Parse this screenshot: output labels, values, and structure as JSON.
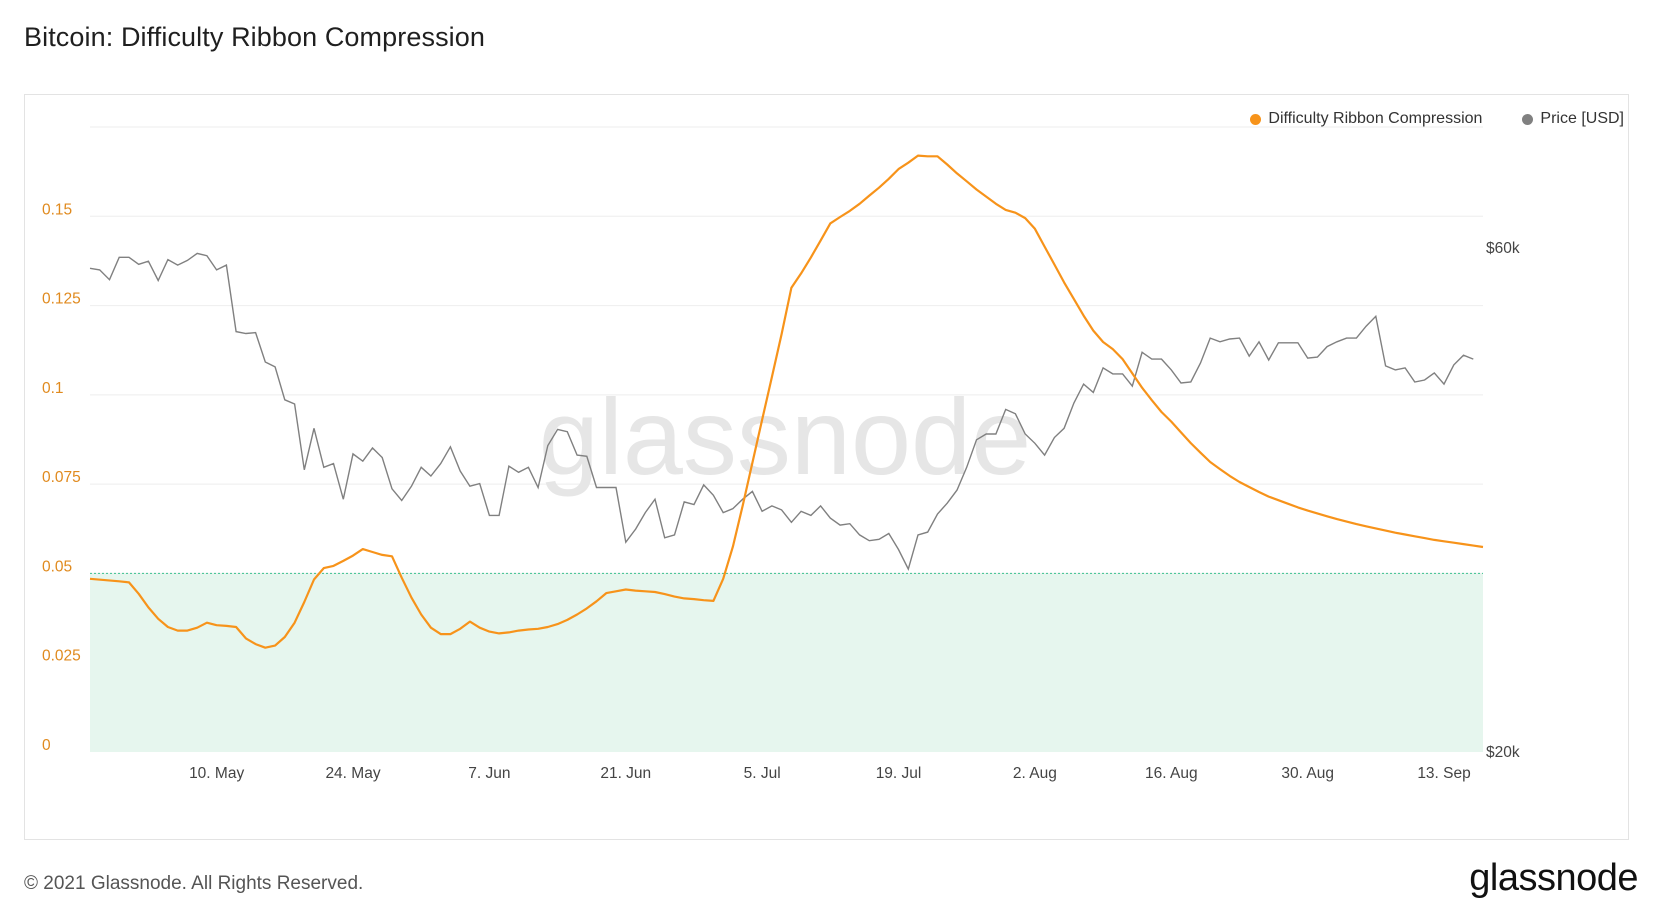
{
  "title": "Bitcoin: Difficulty Ribbon Compression",
  "footer": "© 2021 Glassnode. All Rights Reserved.",
  "logo": "glassnode",
  "watermark": "glassnode",
  "colors": {
    "compression": "#f7931a",
    "price": "#808080",
    "zone_fill": "#e6f6ee",
    "zone_line": "#4fc79a",
    "left_axis_text": "#e08a1e",
    "right_axis_text": "#444444",
    "grid": "#eeeeee"
  },
  "legend": [
    {
      "name": "Difficulty Ribbon Compression",
      "color": "#f7931a"
    },
    {
      "name": "Price [USD]",
      "color": "#808080"
    }
  ],
  "chart_data": {
    "type": "line",
    "title": "Bitcoin: Difficulty Ribbon Compression",
    "x_ticks": [
      "10. May",
      "24. May",
      "7. Jun",
      "21. Jun",
      "5. Jul",
      "19. Jul",
      "2. Aug",
      "16. Aug",
      "30. Aug",
      "13. Sep"
    ],
    "x_tick_days": [
      9,
      23,
      37,
      51,
      65,
      79,
      93,
      107,
      121,
      135
    ],
    "x_range_days": [
      -4,
      139
    ],
    "left_axis": {
      "ticks": [
        "0",
        "0.025",
        "0.05",
        "0.075",
        "0.1",
        "0.125",
        "0.15"
      ],
      "ylim": [
        0,
        0.175
      ]
    },
    "right_axis": {
      "ticks": [
        "$20k",
        "$60k"
      ],
      "scale": "log"
    },
    "threshold": 0.05,
    "grid": true,
    "legend_position": "top-right",
    "series": [
      {
        "name": "Difficulty Ribbon Compression",
        "axis": "left",
        "points": [
          [
            -4,
            0.0485
          ],
          [
            -1,
            0.0478
          ],
          [
            0,
            0.0475
          ],
          [
            1,
            0.0443
          ],
          [
            2,
            0.0405
          ],
          [
            3,
            0.0373
          ],
          [
            4,
            0.035
          ],
          [
            5,
            0.034
          ],
          [
            6,
            0.034
          ],
          [
            7,
            0.0348
          ],
          [
            8,
            0.0362
          ],
          [
            9,
            0.0355
          ],
          [
            10,
            0.0353
          ],
          [
            11,
            0.035
          ],
          [
            12,
            0.0318
          ],
          [
            13,
            0.0302
          ],
          [
            14,
            0.0292
          ],
          [
            15,
            0.0298
          ],
          [
            16,
            0.0322
          ],
          [
            17,
            0.0362
          ],
          [
            18,
            0.042
          ],
          [
            19,
            0.0483
          ],
          [
            20,
            0.0515
          ],
          [
            21,
            0.0521
          ],
          [
            22,
            0.0535
          ],
          [
            23,
            0.055
          ],
          [
            24,
            0.0568
          ],
          [
            25,
            0.056
          ],
          [
            26,
            0.0552
          ],
          [
            27,
            0.0548
          ],
          [
            28,
            0.0488
          ],
          [
            29,
            0.0432
          ],
          [
            30,
            0.0385
          ],
          [
            31,
            0.0348
          ],
          [
            32,
            0.033
          ],
          [
            33,
            0.033
          ],
          [
            34,
            0.0345
          ],
          [
            35,
            0.0365
          ],
          [
            36,
            0.0348
          ],
          [
            37,
            0.0337
          ],
          [
            38,
            0.0332
          ],
          [
            39,
            0.0335
          ],
          [
            40,
            0.034
          ],
          [
            41,
            0.0343
          ],
          [
            42,
            0.0345
          ],
          [
            43,
            0.035
          ],
          [
            44,
            0.0358
          ],
          [
            45,
            0.037
          ],
          [
            46,
            0.0385
          ],
          [
            47,
            0.0402
          ],
          [
            48,
            0.0422
          ],
          [
            49,
            0.0445
          ],
          [
            50,
            0.045
          ],
          [
            51,
            0.0455
          ],
          [
            52,
            0.0452
          ],
          [
            53,
            0.045
          ],
          [
            54,
            0.0448
          ],
          [
            55,
            0.0442
          ],
          [
            56,
            0.0435
          ],
          [
            57,
            0.043
          ],
          [
            58,
            0.0428
          ],
          [
            59,
            0.0425
          ],
          [
            60,
            0.0423
          ],
          [
            61,
            0.0485
          ],
          [
            62,
            0.0575
          ],
          [
            63,
            0.069
          ],
          [
            64,
            0.081
          ],
          [
            65,
            0.093
          ],
          [
            66,
            0.105
          ],
          [
            67,
            0.117
          ],
          [
            68,
            0.13
          ],
          [
            69,
            0.134
          ],
          [
            70,
            0.1385
          ],
          [
            71,
            0.1432
          ],
          [
            72,
            0.148
          ],
          [
            73,
            0.1498
          ],
          [
            74,
            0.1515
          ],
          [
            75,
            0.1535
          ],
          [
            76,
            0.1558
          ],
          [
            77,
            0.158
          ],
          [
            78,
            0.1605
          ],
          [
            79,
            0.1632
          ],
          [
            80,
            0.165
          ],
          [
            81,
            0.167
          ],
          [
            82,
            0.1668
          ],
          [
            83,
            0.1668
          ],
          [
            84,
            0.1645
          ],
          [
            85,
            0.162
          ],
          [
            86,
            0.1598
          ],
          [
            87,
            0.1575
          ],
          [
            88,
            0.1555
          ],
          [
            89,
            0.1535
          ],
          [
            90,
            0.1518
          ],
          [
            91,
            0.151
          ],
          [
            92,
            0.1495
          ],
          [
            93,
            0.1465
          ],
          [
            94,
            0.1415
          ],
          [
            95,
            0.1365
          ],
          [
            96,
            0.1315
          ],
          [
            97,
            0.1268
          ],
          [
            98,
            0.1222
          ],
          [
            99,
            0.118
          ],
          [
            100,
            0.1148
          ],
          [
            101,
            0.1128
          ],
          [
            102,
            0.11
          ],
          [
            103,
            0.106
          ],
          [
            104,
            0.102
          ],
          [
            105,
            0.0985
          ],
          [
            106,
            0.0952
          ],
          [
            107,
            0.0925
          ],
          [
            108,
            0.0895
          ],
          [
            109,
            0.0865
          ],
          [
            110,
            0.0838
          ],
          [
            111,
            0.0812
          ],
          [
            112,
            0.0792
          ],
          [
            113,
            0.0773
          ],
          [
            114,
            0.0756
          ],
          [
            115,
            0.0742
          ],
          [
            116,
            0.0728
          ],
          [
            117,
            0.0715
          ],
          [
            118,
            0.0705
          ],
          [
            119,
            0.0695
          ],
          [
            120,
            0.0685
          ],
          [
            121,
            0.0676
          ],
          [
            122,
            0.0668
          ],
          [
            123,
            0.066
          ],
          [
            124,
            0.0652
          ],
          [
            125,
            0.0645
          ],
          [
            126,
            0.0638
          ],
          [
            127,
            0.0632
          ],
          [
            128,
            0.0626
          ],
          [
            129,
            0.062
          ],
          [
            130,
            0.0614
          ],
          [
            131,
            0.0609
          ],
          [
            132,
            0.0604
          ],
          [
            133,
            0.0599
          ],
          [
            134,
            0.0594
          ],
          [
            135,
            0.059
          ],
          [
            136,
            0.0586
          ],
          [
            137,
            0.0582
          ],
          [
            138,
            0.0578
          ],
          [
            139,
            0.0574
          ]
        ]
      },
      {
        "name": "Price [USD]",
        "axis": "right",
        "points": [
          [
            -4,
            57400
          ],
          [
            -3,
            57200
          ],
          [
            -2,
            56000
          ],
          [
            -1,
            58800
          ],
          [
            0,
            58800
          ],
          [
            1,
            57900
          ],
          [
            2,
            58300
          ],
          [
            3,
            55900
          ],
          [
            4,
            58500
          ],
          [
            5,
            57800
          ],
          [
            6,
            58400
          ],
          [
            7,
            59300
          ],
          [
            8,
            59000
          ],
          [
            9,
            57200
          ],
          [
            10,
            57800
          ],
          [
            11,
            50000
          ],
          [
            12,
            49800
          ],
          [
            13,
            49900
          ],
          [
            14,
            46800
          ],
          [
            15,
            46300
          ],
          [
            16,
            43100
          ],
          [
            17,
            42700
          ],
          [
            18,
            37000
          ],
          [
            19,
            40500
          ],
          [
            20,
            37200
          ],
          [
            21,
            37500
          ],
          [
            22,
            34700
          ],
          [
            23,
            38300
          ],
          [
            24,
            37700
          ],
          [
            25,
            38800
          ],
          [
            26,
            38000
          ],
          [
            27,
            35500
          ],
          [
            28,
            34600
          ],
          [
            29,
            35700
          ],
          [
            30,
            37200
          ],
          [
            31,
            36500
          ],
          [
            32,
            37500
          ],
          [
            33,
            38900
          ],
          [
            34,
            36900
          ],
          [
            35,
            35700
          ],
          [
            36,
            35900
          ],
          [
            37,
            33500
          ],
          [
            38,
            33500
          ],
          [
            39,
            37300
          ],
          [
            40,
            36800
          ],
          [
            41,
            37200
          ],
          [
            42,
            35600
          ],
          [
            43,
            39000
          ],
          [
            44,
            40400
          ],
          [
            45,
            40200
          ],
          [
            46,
            38200
          ],
          [
            47,
            38100
          ],
          [
            48,
            35600
          ],
          [
            49,
            35600
          ],
          [
            50,
            35600
          ],
          [
            51,
            31600
          ],
          [
            52,
            32500
          ],
          [
            53,
            33700
          ],
          [
            54,
            34700
          ],
          [
            55,
            31900
          ],
          [
            56,
            32100
          ],
          [
            57,
            34500
          ],
          [
            58,
            34300
          ],
          [
            59,
            35800
          ],
          [
            60,
            35000
          ],
          [
            61,
            33700
          ],
          [
            62,
            34000
          ],
          [
            63,
            34700
          ],
          [
            64,
            35300
          ],
          [
            65,
            33800
          ],
          [
            66,
            34200
          ],
          [
            67,
            33900
          ],
          [
            68,
            33000
          ],
          [
            69,
            33800
          ],
          [
            70,
            33500
          ],
          [
            71,
            34200
          ],
          [
            72,
            33300
          ],
          [
            73,
            32800
          ],
          [
            74,
            32900
          ],
          [
            75,
            32100
          ],
          [
            76,
            31700
          ],
          [
            77,
            31800
          ],
          [
            78,
            32200
          ],
          [
            79,
            31100
          ],
          [
            80,
            29800
          ],
          [
            81,
            32100
          ],
          [
            82,
            32300
          ],
          [
            83,
            33600
          ],
          [
            84,
            34400
          ],
          [
            85,
            35400
          ],
          [
            86,
            37200
          ],
          [
            87,
            39500
          ],
          [
            88,
            40000
          ],
          [
            89,
            40000
          ],
          [
            90,
            42200
          ],
          [
            91,
            41800
          ],
          [
            92,
            40000
          ],
          [
            93,
            39200
          ],
          [
            94,
            38200
          ],
          [
            95,
            39700
          ],
          [
            96,
            40500
          ],
          [
            97,
            42800
          ],
          [
            98,
            44600
          ],
          [
            99,
            43800
          ],
          [
            100,
            46200
          ],
          [
            101,
            45600
          ],
          [
            102,
            45600
          ],
          [
            103,
            44400
          ],
          [
            104,
            47800
          ],
          [
            105,
            47100
          ],
          [
            106,
            47100
          ],
          [
            107,
            46000
          ],
          [
            108,
            44700
          ],
          [
            109,
            44800
          ],
          [
            110,
            46700
          ],
          [
            111,
            49300
          ],
          [
            112,
            48900
          ],
          [
            113,
            49200
          ],
          [
            114,
            49300
          ],
          [
            115,
            47400
          ],
          [
            116,
            48900
          ],
          [
            117,
            47000
          ],
          [
            118,
            48800
          ],
          [
            119,
            48800
          ],
          [
            120,
            48800
          ],
          [
            121,
            47200
          ],
          [
            122,
            47300
          ],
          [
            123,
            48400
          ],
          [
            124,
            48900
          ],
          [
            125,
            49300
          ],
          [
            126,
            49300
          ],
          [
            127,
            50600
          ],
          [
            128,
            51700
          ],
          [
            129,
            46400
          ],
          [
            130,
            46000
          ],
          [
            131,
            46200
          ],
          [
            132,
            44800
          ],
          [
            133,
            45000
          ],
          [
            134,
            45700
          ],
          [
            135,
            44600
          ],
          [
            136,
            46500
          ],
          [
            137,
            47500
          ],
          [
            138,
            47100
          ]
        ]
      }
    ]
  }
}
